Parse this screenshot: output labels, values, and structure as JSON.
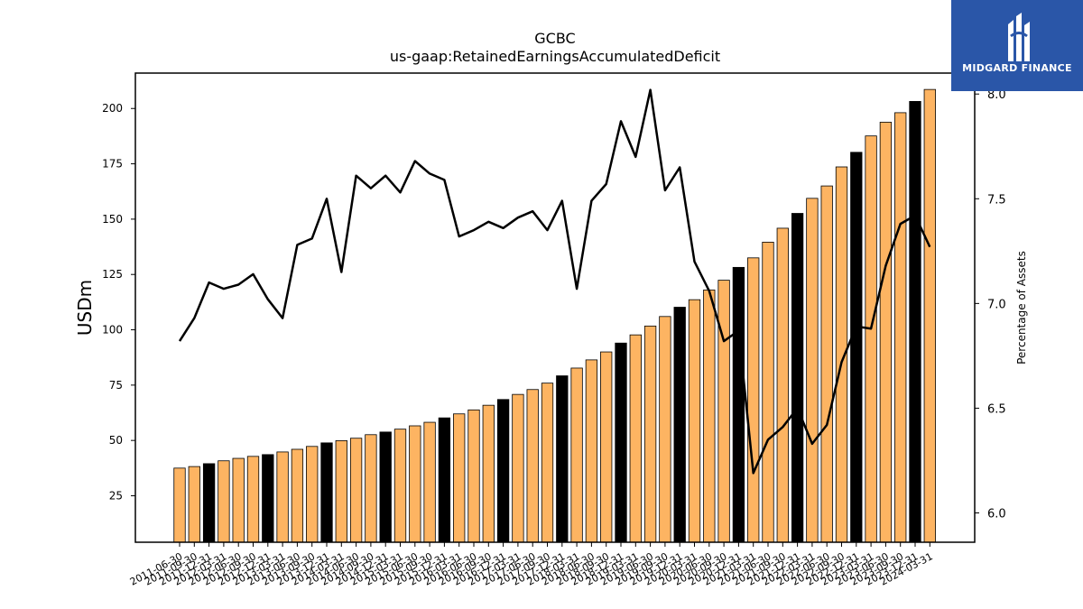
{
  "title": "GCBC",
  "subtitle": "us-gaap:RetainedEarningsAccumulatedDeficit",
  "logo": {
    "text": "MIDGARD FINANCE",
    "color": "#2a56a8"
  },
  "chart_data": {
    "type": "bar",
    "title": "GCBC",
    "subtitle": "us-gaap:RetainedEarningsAccumulatedDeficit",
    "ylabel": "USDm",
    "y2label": "Percentage of Assets",
    "ylim": [
      4,
      216
    ],
    "y2lim": [
      5.86,
      8.1
    ],
    "yticks": [
      25,
      50,
      75,
      100,
      125,
      150,
      175,
      200
    ],
    "y2ticks": [
      6.0,
      6.5,
      7.0,
      7.5,
      8.0
    ],
    "grid": false,
    "colors": {
      "bar": "#fdb462",
      "bar_q4": "#000000",
      "line": "#000000"
    },
    "categories": [
      "2011-06-30",
      "2011-09-30",
      "2011-12-31",
      "2012-03-31",
      "2012-06-30",
      "2012-09-30",
      "2012-12-31",
      "2013-03-31",
      "2013-06-30",
      "2013-09-30",
      "2013-12-31",
      "2014-03-31",
      "2014-06-30",
      "2014-09-30",
      "2014-12-31",
      "2015-03-31",
      "2015-06-30",
      "2015-09-30",
      "2015-12-31",
      "2016-03-31",
      "2016-06-30",
      "2016-09-30",
      "2016-12-31",
      "2017-03-31",
      "2017-06-30",
      "2017-09-30",
      "2017-12-31",
      "2018-03-31",
      "2018-06-30",
      "2018-09-30",
      "2018-12-31",
      "2019-03-31",
      "2019-06-30",
      "2019-09-30",
      "2019-12-31",
      "2020-03-31",
      "2020-06-30",
      "2020-09-30",
      "2020-12-31",
      "2021-03-31",
      "2021-06-30",
      "2021-09-30",
      "2021-12-31",
      "2022-03-31",
      "2022-06-30",
      "2022-09-30",
      "2022-12-31",
      "2023-03-31",
      "2023-06-30",
      "2023-09-30",
      "2023-12-31",
      "2024-03-31"
    ],
    "series": [
      {
        "type": "bar",
        "values": [
          37.5,
          38.2,
          39.5,
          40.8,
          41.9,
          42.8,
          43.6,
          44.8,
          46.0,
          47.3,
          48.9,
          49.9,
          51.0,
          52.6,
          53.8,
          55.1,
          56.6,
          58.2,
          60.2,
          62.0,
          63.8,
          65.9,
          68.5,
          70.8,
          73.0,
          75.9,
          79.2,
          82.7,
          86.4,
          90.0,
          94.0,
          97.7,
          101.7,
          106.0,
          110.2,
          113.6,
          118.0,
          122.4,
          128.2,
          132.5,
          139.6,
          145.9,
          152.6,
          159.4,
          165.0,
          173.6,
          180.2,
          187.6,
          193.8,
          198.1,
          203.2,
          208.6
        ]
      },
      {
        "type": "line",
        "axis": "right",
        "values": [
          6.82,
          6.93,
          7.1,
          7.07,
          7.09,
          7.14,
          7.02,
          6.93,
          7.28,
          7.31,
          7.5,
          7.15,
          7.61,
          7.55,
          7.61,
          7.53,
          7.68,
          7.62,
          7.59,
          7.32,
          7.35,
          7.39,
          7.36,
          7.41,
          7.44,
          7.35,
          7.49,
          7.07,
          7.49,
          7.57,
          7.87,
          7.7,
          8.02,
          7.54,
          7.65,
          7.2,
          7.06,
          6.82,
          6.87,
          6.19,
          6.35,
          6.41,
          6.5,
          6.33,
          6.42,
          6.72,
          6.89,
          6.88,
          7.18,
          7.38,
          7.42,
          7.27
        ]
      }
    ]
  }
}
